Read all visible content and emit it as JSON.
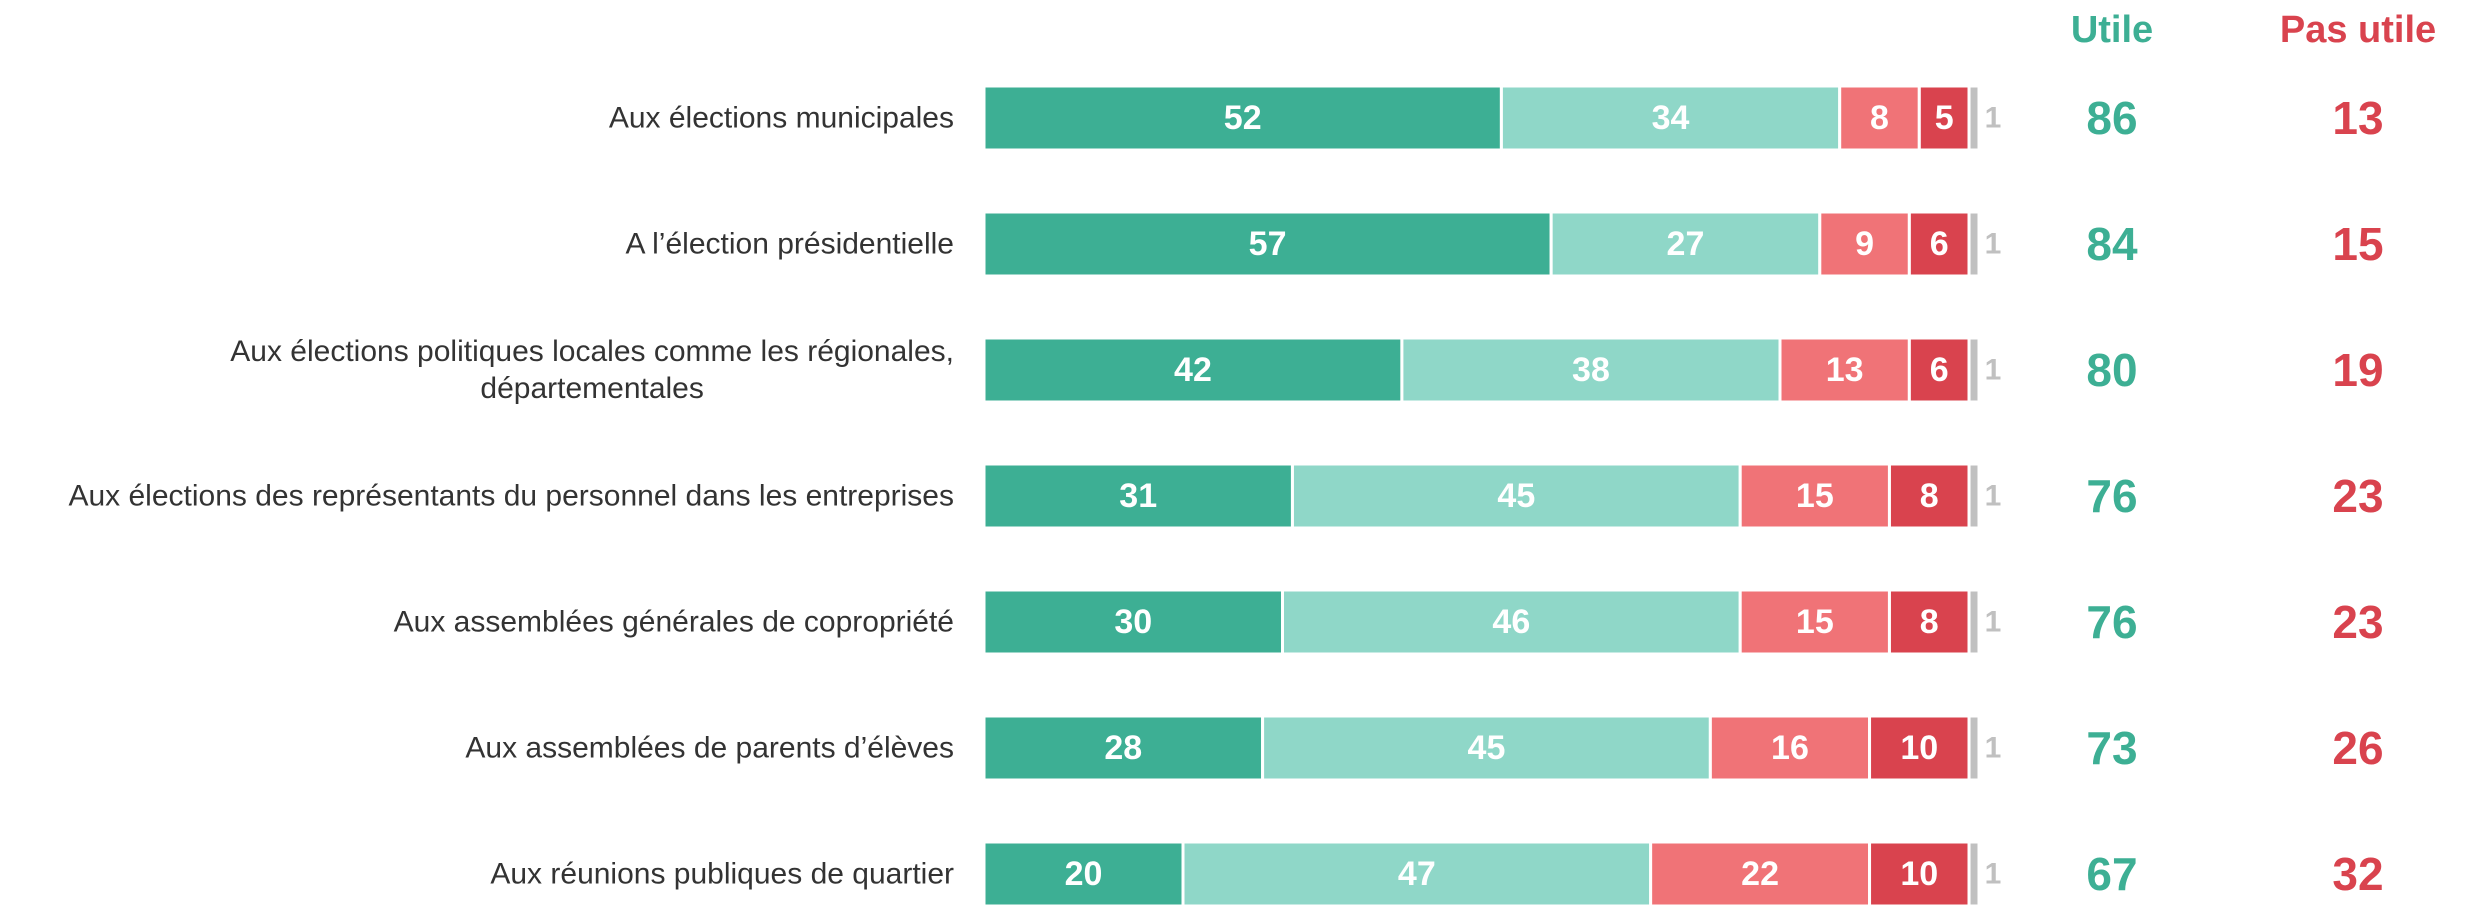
{
  "chart_data": {
    "type": "stacked-barh",
    "categories": [
      "Aux élections municipales",
      "A l’élection présidentielle",
      "Aux élections politiques locales comme les régionales,\ndépartementales",
      "Aux élections des représentants du personnel dans les entreprises",
      "Aux assemblées générales de copropriété",
      "Aux assemblées de parents d’élèves",
      "Aux réunions publiques de quartier"
    ],
    "xlim": [
      0,
      100
    ],
    "series": [
      {
        "color": "#3daf94",
        "values": [
          52,
          57,
          42,
          31,
          30,
          28,
          20
        ]
      },
      {
        "color": "#8fd7c8",
        "values": [
          34,
          27,
          38,
          45,
          46,
          45,
          47
        ]
      },
      {
        "color": "#f07377",
        "values": [
          8,
          9,
          13,
          15,
          15,
          16,
          22
        ]
      },
      {
        "color": "#d9434e",
        "values": [
          5,
          6,
          6,
          8,
          8,
          10,
          10
        ]
      },
      {
        "color": "#c0c0c0",
        "values": [
          1,
          1,
          1,
          1,
          1,
          1,
          1
        ]
      }
    ],
    "totals": [
      {
        "label": "Utile",
        "color": "#3daf94",
        "values": [
          86,
          84,
          80,
          76,
          76,
          73,
          67
        ]
      },
      {
        "label": "Pas utile",
        "color": "#d9434e",
        "values": [
          13,
          15,
          19,
          23,
          23,
          26,
          32
        ]
      }
    ]
  }
}
